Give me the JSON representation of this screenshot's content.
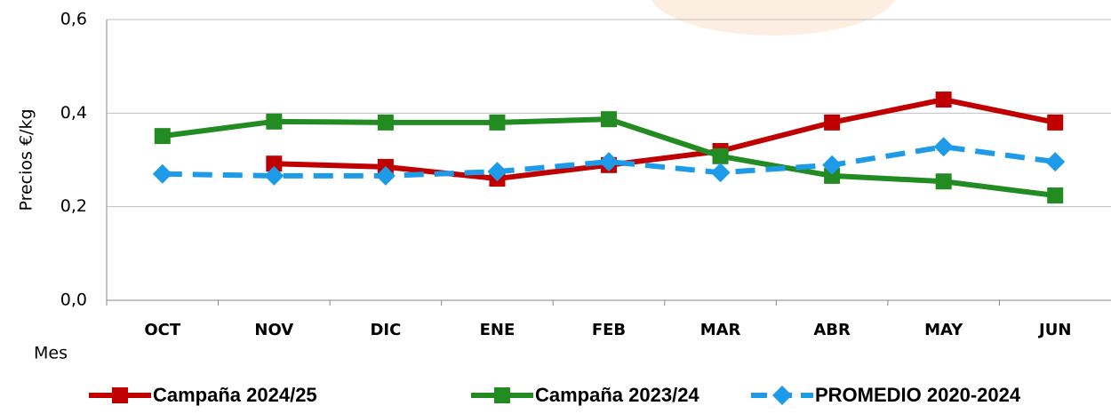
{
  "chart_data": {
    "type": "line",
    "x_label": "Mes",
    "y_label": "Precios €/kg",
    "categories": [
      "OCT",
      "NOV",
      "DIC",
      "ENE",
      "FEB",
      "MAR",
      "ABR",
      "MAY",
      "JUN"
    ],
    "series": [
      {
        "name": "Campaña 2024/25",
        "color": "#c00000",
        "marker": "square",
        "dashed": false,
        "values": [
          null,
          0.292,
          0.285,
          0.26,
          0.289,
          0.319,
          0.38,
          0.429,
          0.38
        ]
      },
      {
        "name": "Campaña 2023/24",
        "color": "#228b22",
        "marker": "square",
        "dashed": false,
        "values": [
          0.351,
          0.382,
          0.38,
          0.38,
          0.387,
          0.308,
          0.266,
          0.254,
          0.224
        ]
      },
      {
        "name": "PROMEDIO 2020-2024",
        "color": "#1e9be8",
        "marker": "diamond",
        "dashed": true,
        "values": [
          0.27,
          0.266,
          0.266,
          0.275,
          0.296,
          0.273,
          0.289,
          0.328,
          0.296
        ]
      }
    ],
    "ylim": [
      0,
      0.6
    ],
    "yticks": [
      {
        "value": 0,
        "label": "0,0"
      },
      {
        "value": 0.2,
        "label": "0,2"
      },
      {
        "value": 0.4,
        "label": "0,4"
      },
      {
        "value": 0.6,
        "label": "0,6"
      }
    ],
    "grid": true,
    "legend": "bottom"
  }
}
